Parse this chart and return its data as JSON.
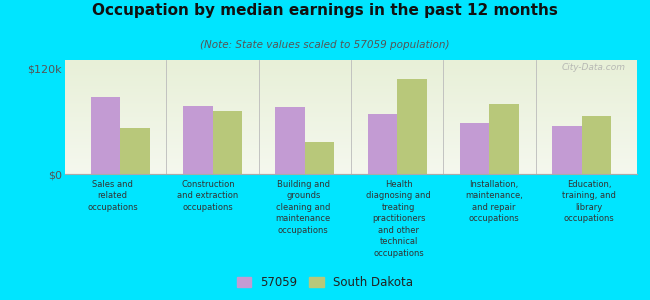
{
  "title": "Occupation by median earnings in the past 12 months",
  "subtitle": "(Note: State values scaled to 57059 population)",
  "background_color": "#00e5ff",
  "plot_bg_top": "#e8f0d8",
  "plot_bg_bottom": "#f5f8ee",
  "categories": [
    "Sales and\nrelated\noccupations",
    "Construction\nand extraction\noccupations",
    "Building and\ngrounds\ncleaning and\nmaintenance\noccupations",
    "Health\ndiagnosing and\ntreating\npractitioners\nand other\ntechnical\noccupations",
    "Installation,\nmaintenance,\nand repair\noccupations",
    "Education,\ntraining, and\nlibrary\noccupations"
  ],
  "values_57059": [
    88000,
    78000,
    76000,
    68000,
    58000,
    55000
  ],
  "values_sd": [
    52000,
    72000,
    36000,
    108000,
    80000,
    66000
  ],
  "color_57059": "#c39bd3",
  "color_sd": "#b8c87a",
  "ylim": [
    0,
    130000
  ],
  "yticks": [
    0,
    120000
  ],
  "ytick_labels": [
    "$0",
    "$120k"
  ],
  "legend_labels": [
    "57059",
    "South Dakota"
  ],
  "watermark": "City-Data.com"
}
